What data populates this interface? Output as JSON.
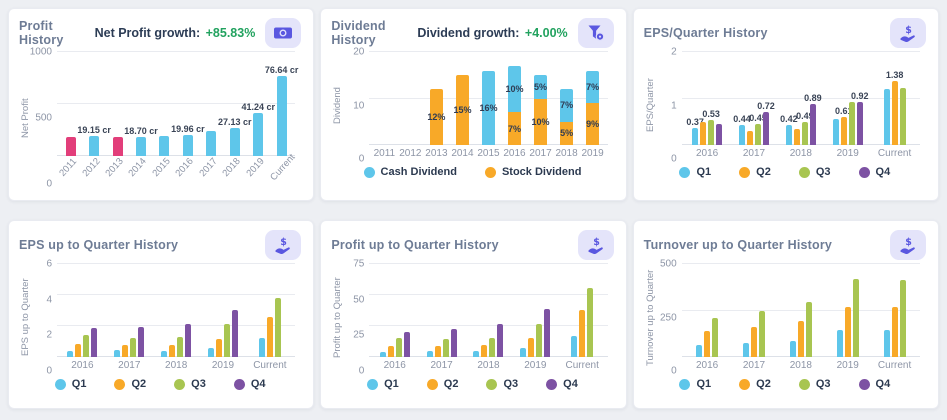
{
  "palette": {
    "blue": "#5ec6ea",
    "orange": "#f8a928",
    "green": "#a8c551",
    "purple": "#7d52a3",
    "pink": "#e23e7a",
    "growth_green": "#22a25f",
    "title_gray": "#6e7c95",
    "dark_navy": "#2c3c55",
    "axis_gray": "#8d95a6",
    "icon_bg": "#e4e4fa",
    "icon_fg": "#5a57e0"
  },
  "chart_data": [
    {
      "slug": "profit-history",
      "type": "bar",
      "title": "Profit History",
      "growth_label": "Net Profit growth:",
      "growth_value": "+85.83%",
      "icon": "banknote-icon",
      "ylabel": "Net Profit",
      "ylim": [
        0,
        1000
      ],
      "yticks": [
        0,
        500,
        1000
      ],
      "rotate_x": true,
      "categories": [
        "2011",
        "2012",
        "2013",
        "2014",
        "2015",
        "2016",
        "2017",
        "2018",
        "2019",
        "Current"
      ],
      "values": [
        185,
        191.5,
        185,
        187,
        196,
        199.6,
        238,
        271.3,
        412.4,
        766.4
      ],
      "bar_colors": [
        "pink",
        "blue",
        "pink",
        "blue",
        "blue",
        "blue",
        "blue",
        "blue",
        "blue",
        "blue"
      ],
      "labels": [
        "",
        "19.15 cr",
        "",
        "18.70 cr",
        "",
        "19.96 cr",
        "",
        "27.13 cr",
        "41.24 cr",
        "76.64 cr"
      ]
    },
    {
      "slug": "dividend-history",
      "type": "stacked-bar",
      "title": "Dividend History",
      "growth_label": "Dividend growth:",
      "growth_value": "+4.00%",
      "icon": "filter-icon",
      "ylabel": "Dividend",
      "ylim": [
        0,
        20
      ],
      "yticks": [
        0,
        10,
        20
      ],
      "categories": [
        "2011",
        "2012",
        "2013",
        "2014",
        "2015",
        "2016",
        "2017",
        "2018",
        "2019"
      ],
      "series": [
        {
          "name": "Stock Dividend",
          "color": "orange",
          "values": [
            0,
            0,
            12,
            15,
            0,
            7,
            10,
            5,
            9
          ],
          "labels": [
            "",
            "",
            "12%",
            "15%",
            "",
            "7%",
            "10%",
            "5%",
            "9%"
          ]
        },
        {
          "name": "Cash Dividend",
          "color": "blue",
          "values": [
            0,
            0,
            0,
            0,
            16,
            10,
            5,
            7,
            7
          ],
          "labels": [
            "",
            "",
            "",
            "",
            "16%",
            "10%",
            "5%",
            "7%",
            "7%"
          ]
        }
      ],
      "legend": [
        {
          "label": "Cash Dividend",
          "color": "blue"
        },
        {
          "label": "Stock Dividend",
          "color": "orange"
        }
      ]
    },
    {
      "slug": "eps-quarter-history",
      "type": "grouped-bar",
      "title": "EPS/Quarter History",
      "icon": "hand-dollar-icon",
      "ylabel": "EPS/Quarter",
      "ylim": [
        0,
        2
      ],
      "yticks": [
        0,
        1,
        2
      ],
      "categories": [
        "2016",
        "2017",
        "2018",
        "2019",
        "Current"
      ],
      "series": [
        {
          "name": "Q1",
          "color": "blue",
          "values": [
            0.37,
            0.44,
            0.42,
            0.57,
            1.21
          ],
          "labels": [
            "0.37",
            "0.44",
            "0.42",
            "",
            ""
          ]
        },
        {
          "name": "Q2",
          "color": "orange",
          "values": [
            0.5,
            0.31,
            0.35,
            0.61,
            1.38
          ],
          "labels": [
            "",
            "",
            "",
            "0.61",
            "1.38"
          ]
        },
        {
          "name": "Q3",
          "color": "green",
          "values": [
            0.53,
            0.45,
            0.49,
            0.92,
            1.22
          ],
          "labels": [
            "0.53",
            "0.45",
            "0.49",
            "",
            ""
          ]
        },
        {
          "name": "Q4",
          "color": "purple",
          "values": [
            0.45,
            0.72,
            0.89,
            0.92,
            null
          ],
          "labels": [
            "",
            "0.72",
            "0.89",
            "0.92",
            ""
          ]
        }
      ],
      "legend": [
        {
          "label": "Q1",
          "color": "blue"
        },
        {
          "label": "Q2",
          "color": "orange"
        },
        {
          "label": "Q3",
          "color": "green"
        },
        {
          "label": "Q4",
          "color": "purple"
        }
      ]
    },
    {
      "slug": "eps-up-to-quarter-history",
      "type": "grouped-bar",
      "title": "EPS up to Quarter History",
      "icon": "hand-dollar-icon",
      "ylabel": "EPS up to Quarter",
      "ylim": [
        0,
        6
      ],
      "yticks": [
        0,
        2,
        4,
        6
      ],
      "categories": [
        "2016",
        "2017",
        "2018",
        "2019",
        "Current"
      ],
      "series": [
        {
          "name": "Q1",
          "color": "blue",
          "values": [
            0.37,
            0.44,
            0.42,
            0.57,
            1.21
          ]
        },
        {
          "name": "Q2",
          "color": "orange",
          "values": [
            0.87,
            0.75,
            0.77,
            1.18,
            2.59
          ]
        },
        {
          "name": "Q3",
          "color": "green",
          "values": [
            1.4,
            1.2,
            1.26,
            2.1,
            3.81
          ]
        },
        {
          "name": "Q4",
          "color": "purple",
          "values": [
            1.85,
            1.92,
            2.15,
            3.02,
            null
          ]
        }
      ],
      "legend": [
        {
          "label": "Q1",
          "color": "blue"
        },
        {
          "label": "Q2",
          "color": "orange"
        },
        {
          "label": "Q3",
          "color": "green"
        },
        {
          "label": "Q4",
          "color": "purple"
        }
      ]
    },
    {
      "slug": "profit-up-to-quarter-history",
      "type": "grouped-bar",
      "title": "Profit up to Quarter History",
      "icon": "hand-dollar-icon",
      "ylabel": "Profit up to Quarter",
      "ylim": [
        0,
        75
      ],
      "yticks": [
        0,
        25,
        50,
        75
      ],
      "categories": [
        "2016",
        "2017",
        "2018",
        "2019",
        "Current"
      ],
      "series": [
        {
          "name": "Q1",
          "color": "blue",
          "values": [
            4,
            4.5,
            4.5,
            7,
            17
          ]
        },
        {
          "name": "Q2",
          "color": "orange",
          "values": [
            9,
            9,
            10,
            15.5,
            38
          ]
        },
        {
          "name": "Q3",
          "color": "green",
          "values": [
            15,
            14.5,
            15.5,
            27,
            56
          ]
        },
        {
          "name": "Q4",
          "color": "purple",
          "values": [
            20,
            22.5,
            27,
            39,
            null
          ]
        }
      ],
      "legend": [
        {
          "label": "Q1",
          "color": "blue"
        },
        {
          "label": "Q2",
          "color": "orange"
        },
        {
          "label": "Q3",
          "color": "green"
        },
        {
          "label": "Q4",
          "color": "purple"
        }
      ]
    },
    {
      "slug": "turnover-up-to-quarter-history",
      "type": "grouped-bar",
      "title": "Turnover up to Quarter History",
      "icon": "hand-dollar-icon",
      "ylabel": "Turnover up to Quarter",
      "ylim": [
        0,
        500
      ],
      "yticks": [
        0,
        250,
        500
      ],
      "categories": [
        "2016",
        "2017",
        "2018",
        "2019",
        "Current"
      ],
      "series": [
        {
          "name": "Q1",
          "color": "blue",
          "values": [
            65,
            75,
            88,
            143,
            143
          ]
        },
        {
          "name": "Q2",
          "color": "orange",
          "values": [
            140,
            162,
            193,
            271,
            271
          ]
        },
        {
          "name": "Q3",
          "color": "green",
          "values": [
            212,
            248,
            295,
            418,
            414
          ]
        },
        {
          "name": "Q4",
          "color": "purple",
          "values": [
            null,
            null,
            null,
            null,
            null
          ]
        }
      ],
      "legend": [
        {
          "label": "Q1",
          "color": "blue"
        },
        {
          "label": "Q2",
          "color": "orange"
        },
        {
          "label": "Q3",
          "color": "green"
        },
        {
          "label": "Q4",
          "color": "purple"
        }
      ]
    }
  ]
}
